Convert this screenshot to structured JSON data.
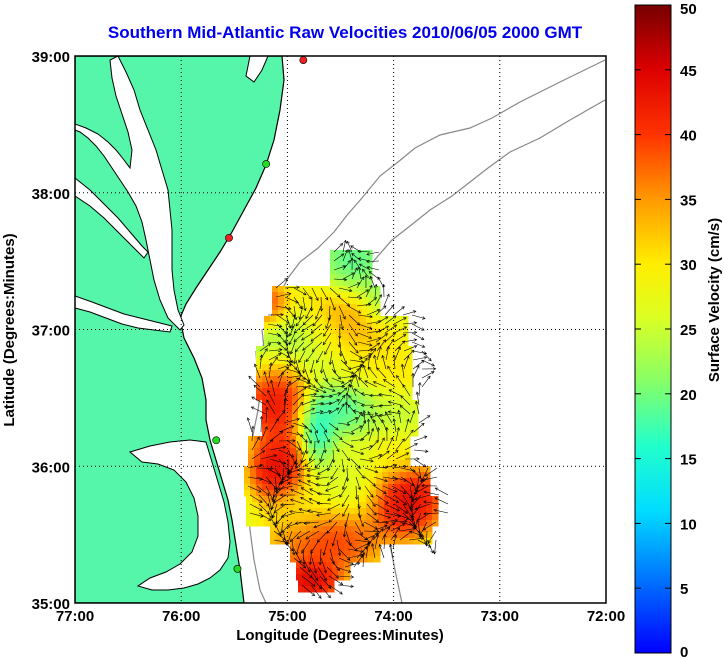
{
  "title": "Southern Mid-Atlantic Raw Velocities 2010/06/05 2000 GMT",
  "colors": {
    "title": "#0000ee",
    "land": "#55f5aa",
    "coastline": "#000000",
    "bathymetry": "#888888",
    "grid": "#000000",
    "station_active": "#22dd22",
    "station_inactive": "#ee2222"
  },
  "map": {
    "xlabel": "Longitude (Degrees:Minutes)",
    "ylabel": "Latitude (Degrees:Minutes)",
    "lon_ticks": [
      "77:00",
      "76:00",
      "75:00",
      "74:00",
      "73:00",
      "72:00"
    ],
    "lat_ticks": [
      "39:00",
      "38:00",
      "37:00",
      "36:00",
      "35:00"
    ],
    "lon_range": [
      -77,
      -72
    ],
    "lat_range": [
      35,
      39
    ],
    "grid": "dotted"
  },
  "colorbar": {
    "label": "Surface Velocity (cm/s)",
    "ticks": [
      "50",
      "45",
      "40",
      "35",
      "30",
      "25",
      "20",
      "15",
      "10",
      "5",
      "0"
    ],
    "range": [
      0,
      50
    ],
    "colormap": "jet"
  },
  "stations": [
    {
      "lon": -74.85,
      "lat": 38.97,
      "status": "inactive"
    },
    {
      "lon": -75.2,
      "lat": 38.21,
      "status": "active"
    },
    {
      "lon": -75.55,
      "lat": 37.67,
      "status": "inactive"
    },
    {
      "lon": -75.67,
      "lat": 36.19,
      "status": "active"
    },
    {
      "lon": -75.47,
      "lat": 35.25,
      "status": "active"
    }
  ]
}
